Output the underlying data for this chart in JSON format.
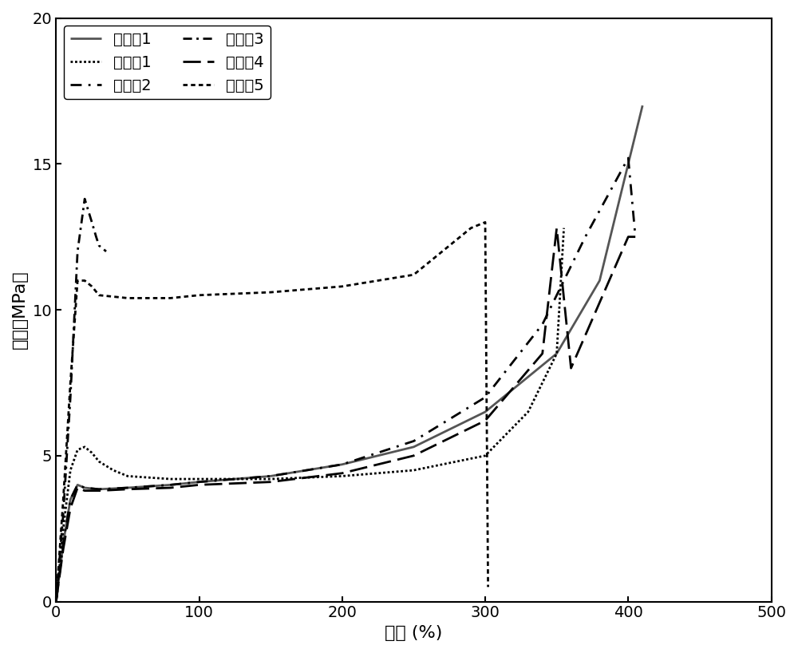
{
  "title": "",
  "xlabel": "应变 (%)",
  "ylabel": "应力（MPa）",
  "xlim": [
    0,
    500
  ],
  "ylim": [
    0,
    20
  ],
  "xticks": [
    0,
    100,
    200,
    300,
    400,
    500
  ],
  "yticks": [
    0,
    5,
    10,
    15,
    20
  ],
  "series": [
    {
      "label": "实施例1",
      "linestyle": "solid",
      "linewidth": 2.0,
      "color": "#555555",
      "x": [
        0,
        5,
        10,
        15,
        20,
        30,
        50,
        80,
        100,
        150,
        200,
        250,
        300,
        350,
        380,
        400,
        410
      ],
      "y": [
        0,
        2.0,
        3.5,
        4.0,
        3.9,
        3.85,
        3.9,
        4.0,
        4.1,
        4.3,
        4.7,
        5.3,
        6.5,
        8.5,
        11.0,
        15.0,
        17.0
      ]
    },
    {
      "label": "对比例1",
      "linestyle": "densely dotted",
      "linewidth": 2.0,
      "color": "#000000",
      "x": [
        0,
        5,
        10,
        15,
        20,
        25,
        30,
        40,
        50,
        80,
        100,
        150,
        200,
        250,
        300,
        330,
        350,
        355
      ],
      "y": [
        0,
        2.5,
        4.5,
        5.2,
        5.3,
        5.1,
        4.8,
        4.5,
        4.3,
        4.2,
        4.2,
        4.2,
        4.3,
        4.5,
        5.0,
        6.5,
        8.5,
        12.8
      ]
    },
    {
      "label": "对比例2",
      "linestyle": "dashed",
      "linewidth": 2.0,
      "color": "#000000",
      "x": [
        0,
        5,
        10,
        15,
        20,
        30,
        50,
        80,
        100,
        150,
        200,
        250,
        300,
        340,
        370,
        400,
        405
      ],
      "y": [
        0,
        2.0,
        3.5,
        4.0,
        3.9,
        3.85,
        3.9,
        4.0,
        4.1,
        4.3,
        4.7,
        5.5,
        7.0,
        9.5,
        12.5,
        15.2,
        12.5
      ]
    },
    {
      "label": "对比例3",
      "linestyle": "dashdot",
      "linewidth": 2.0,
      "color": "#000000",
      "x": [
        0,
        5,
        10,
        15,
        20,
        25,
        28,
        30,
        35
      ],
      "y": [
        0,
        3.0,
        7.0,
        12.0,
        13.8,
        13.0,
        12.5,
        12.2,
        12.0
      ]
    },
    {
      "label": "对比例4",
      "linestyle": "longdash",
      "linewidth": 2.0,
      "color": "#000000",
      "x": [
        0,
        5,
        10,
        15,
        20,
        30,
        50,
        80,
        100,
        150,
        200,
        250,
        300,
        340,
        350,
        360,
        400,
        405
      ],
      "y": [
        0,
        1.8,
        3.2,
        3.9,
        3.8,
        3.8,
        3.85,
        3.9,
        4.0,
        4.1,
        4.4,
        5.0,
        6.2,
        8.5,
        12.8,
        8.0,
        12.5,
        12.5
      ]
    },
    {
      "label": "对比例5",
      "linestyle": "dotted",
      "linewidth": 2.0,
      "color": "#000000",
      "x": [
        0,
        5,
        10,
        15,
        20,
        25,
        30,
        50,
        80,
        100,
        150,
        200,
        250,
        290,
        300,
        302
      ],
      "y": [
        0,
        3.5,
        7.5,
        11.0,
        11.0,
        10.8,
        10.5,
        10.4,
        10.4,
        10.5,
        10.6,
        10.8,
        11.2,
        12.8,
        13.0,
        0.5
      ]
    }
  ],
  "legend_loc": "upper left",
  "font_size": 14,
  "tick_font_size": 14,
  "label_font_size": 16
}
